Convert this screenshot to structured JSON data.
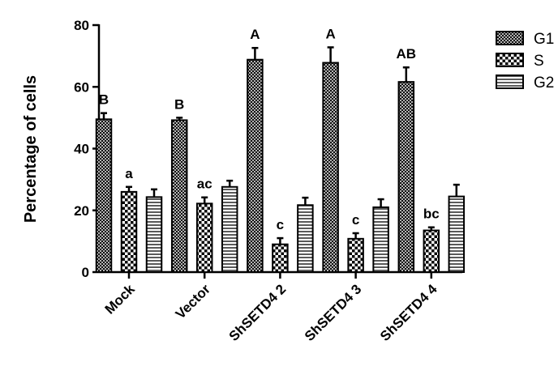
{
  "chart_data": {
    "type": "bar",
    "ylabel": "Percentage of cells",
    "xlabel": "",
    "ylim": [
      0,
      80
    ],
    "yticks": [
      0,
      20,
      40,
      60,
      80
    ],
    "categories": [
      "Mock",
      "Vector",
      "ShSETD4 2",
      "ShSETD4 3",
      "ShSETD4 4"
    ],
    "series": [
      {
        "name": "G1",
        "pattern": "crosshatch",
        "values": [
          49.5,
          49.2,
          68.8,
          67.8,
          61.6
        ],
        "errors": [
          2.0,
          0.8,
          3.8,
          5.0,
          4.7
        ]
      },
      {
        "name": "S",
        "pattern": "checker",
        "values": [
          26.0,
          22.2,
          9.0,
          10.8,
          13.5
        ],
        "errors": [
          1.6,
          2.0,
          2.0,
          1.8,
          1.0
        ]
      },
      {
        "name": "G2",
        "pattern": "hlines",
        "values": [
          24.3,
          27.6,
          21.7,
          21.0,
          24.5
        ],
        "errors": [
          2.5,
          2.0,
          2.4,
          2.6,
          3.8
        ]
      }
    ],
    "annotations": [
      {
        "category": "Mock",
        "series": "G1",
        "text": "B"
      },
      {
        "category": "Mock",
        "series": "S",
        "text": "a"
      },
      {
        "category": "Vector",
        "series": "G1",
        "text": "B"
      },
      {
        "category": "Vector",
        "series": "S",
        "text": "ac"
      },
      {
        "category": "ShSETD4 2",
        "series": "G1",
        "text": "A"
      },
      {
        "category": "ShSETD4 2",
        "series": "S",
        "text": "c"
      },
      {
        "category": "ShSETD4 3",
        "series": "G1",
        "text": "A"
      },
      {
        "category": "ShSETD4 3",
        "series": "S",
        "text": "c"
      },
      {
        "category": "ShSETD4 4",
        "series": "G1",
        "text": "AB"
      },
      {
        "category": "ShSETD4 4",
        "series": "S",
        "text": "bc"
      }
    ],
    "legend": {
      "position": "top-right",
      "entries": [
        "G1",
        "S",
        "G2"
      ]
    },
    "grid": false
  }
}
